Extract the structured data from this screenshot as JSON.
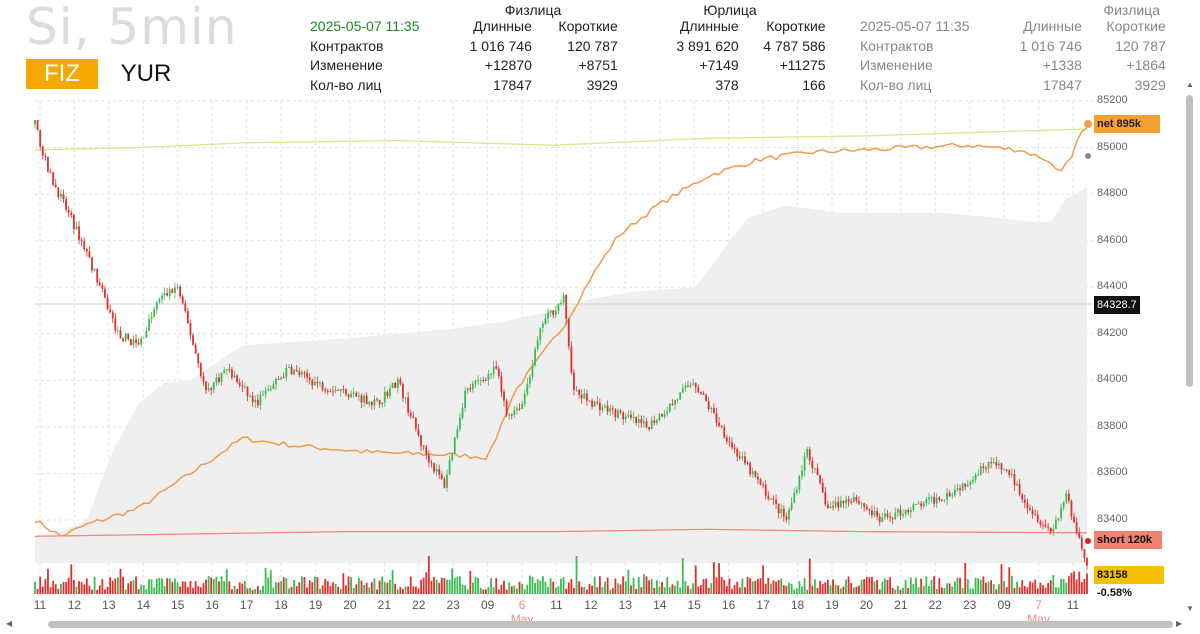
{
  "header": {
    "title": "Si, 5min",
    "tab_fiz": "FIZ",
    "tab_yur": "YUR"
  },
  "stats_left": {
    "timestamp": "2025-05-07 11:35",
    "group_fiz": "Физлица",
    "group_yur": "Юрлица",
    "col_long": "Длинные",
    "col_short": "Короткие",
    "col_long2": "Длинные",
    "col_short2": "Короткие",
    "rows": [
      {
        "label": "Контрактов",
        "fiz_long": "1 016 746",
        "fiz_short": "120 787",
        "yur_long": "3 891 620",
        "yur_short": "4 787 586"
      },
      {
        "label": "Изменение",
        "fiz_long": "+12870",
        "fiz_short": "+8751",
        "yur_long": "+7149",
        "yur_short": "+11275"
      },
      {
        "label": "Кол-во лиц",
        "fiz_long": "17847",
        "fiz_short": "3929",
        "yur_long": "378",
        "yur_short": "166"
      }
    ]
  },
  "stats_right": {
    "timestamp": "2025-05-07 11:35",
    "group": "Физлица",
    "col_long": "Длинные",
    "col_short": "Короткие",
    "rows": [
      {
        "label": "Контрактов",
        "long": "1 016 746",
        "short": "120 787"
      },
      {
        "label": "Изменение",
        "long": "+1338",
        "short": "+1864"
      },
      {
        "label": "Кол-во лиц",
        "long": "17847",
        "short": "3929"
      }
    ]
  },
  "price_labels": {
    "net": "net 895k",
    "crosshair": "84328.7",
    "short": "short 120k",
    "last": "83158 -0.58%"
  },
  "colors": {
    "up": "#3cba54",
    "down": "#e0302e",
    "orange_line": "#f29a4a",
    "yellow_line": "#d8e88c",
    "red_line": "#f08a80",
    "band": "#efefef",
    "timestamp_green": "#1a8a1a"
  },
  "chart_data": {
    "type": "candlestick",
    "y_axis": {
      "min": 83200,
      "max": 85200,
      "ticks": [
        85200,
        85000,
        84800,
        84600,
        84400,
        84200,
        84000,
        83800,
        83600,
        83400
      ]
    },
    "x_ticks": [
      "11",
      "12",
      "13",
      "14",
      "15",
      "16",
      "17",
      "18",
      "19",
      "20",
      "21",
      "22",
      "23",
      "09",
      "6 May",
      "11",
      "12",
      "13",
      "14",
      "15",
      "16",
      "17",
      "18",
      "19",
      "20",
      "21",
      "22",
      "23",
      "09",
      "7 May",
      "11"
    ],
    "x_ticks_highlighted": [
      "6 May",
      "7 May"
    ],
    "price_anchors": [
      [
        0,
        85100
      ],
      [
        5,
        84900
      ],
      [
        20,
        84550
      ],
      [
        32,
        84200
      ],
      [
        40,
        84150
      ],
      [
        48,
        84350
      ],
      [
        55,
        84400
      ],
      [
        60,
        84200
      ],
      [
        66,
        83950
      ],
      [
        74,
        84050
      ],
      [
        85,
        83900
      ],
      [
        98,
        84050
      ],
      [
        110,
        83980
      ],
      [
        120,
        83950
      ],
      [
        132,
        83900
      ],
      [
        140,
        84000
      ],
      [
        150,
        83700
      ],
      [
        158,
        83550
      ],
      [
        166,
        83950
      ],
      [
        178,
        84050
      ],
      [
        182,
        83850
      ],
      [
        188,
        83900
      ],
      [
        196,
        84250
      ],
      [
        204,
        84350
      ],
      [
        208,
        83950
      ],
      [
        216,
        83900
      ],
      [
        226,
        83850
      ],
      [
        236,
        83800
      ],
      [
        246,
        83900
      ],
      [
        254,
        84000
      ],
      [
        262,
        83850
      ],
      [
        270,
        83700
      ],
      [
        280,
        83550
      ],
      [
        290,
        83400
      ],
      [
        298,
        83700
      ],
      [
        306,
        83450
      ],
      [
        316,
        83500
      ],
      [
        326,
        83400
      ],
      [
        338,
        83450
      ],
      [
        350,
        83500
      ],
      [
        358,
        83550
      ],
      [
        368,
        83650
      ],
      [
        376,
        83600
      ],
      [
        384,
        83450
      ],
      [
        392,
        83350
      ],
      [
        398,
        83500
      ],
      [
        402,
        83350
      ],
      [
        406,
        83200
      ]
    ],
    "yellow_line": [
      [
        0,
        84990
      ],
      [
        40,
        85000
      ],
      [
        80,
        85020
      ],
      [
        140,
        85030
      ],
      [
        200,
        85010
      ],
      [
        260,
        85040
      ],
      [
        320,
        85050
      ],
      [
        406,
        85080
      ]
    ],
    "orange_line": [
      [
        0,
        83400
      ],
      [
        10,
        83330
      ],
      [
        20,
        83380
      ],
      [
        40,
        83450
      ],
      [
        60,
        83600
      ],
      [
        80,
        83750
      ],
      [
        100,
        83720
      ],
      [
        130,
        83690
      ],
      [
        160,
        83680
      ],
      [
        175,
        83670
      ],
      [
        185,
        83950
      ],
      [
        195,
        84100
      ],
      [
        205,
        84250
      ],
      [
        215,
        84450
      ],
      [
        225,
        84620
      ],
      [
        240,
        84750
      ],
      [
        260,
        84880
      ],
      [
        280,
        84950
      ],
      [
        300,
        84980
      ],
      [
        320,
        84990
      ],
      [
        340,
        85000
      ],
      [
        360,
        85010
      ],
      [
        380,
        84990
      ],
      [
        390,
        84950
      ],
      [
        395,
        84900
      ],
      [
        400,
        84950
      ],
      [
        403,
        85050
      ],
      [
        406,
        85080
      ]
    ],
    "red_line": [
      [
        0,
        83330
      ],
      [
        60,
        83340
      ],
      [
        120,
        83350
      ],
      [
        200,
        83350
      ],
      [
        260,
        83360
      ],
      [
        320,
        83350
      ],
      [
        406,
        83345
      ]
    ],
    "band_upper": [
      [
        0,
        83330
      ],
      [
        10,
        83350
      ],
      [
        20,
        83400
      ],
      [
        30,
        83700
      ],
      [
        40,
        83900
      ],
      [
        50,
        83990
      ],
      [
        60,
        84000
      ],
      [
        80,
        84150
      ],
      [
        120,
        84180
      ],
      [
        160,
        84220
      ],
      [
        180,
        84250
      ],
      [
        200,
        84300
      ],
      [
        215,
        84350
      ],
      [
        230,
        84380
      ],
      [
        255,
        84400
      ],
      [
        275,
        84700
      ],
      [
        290,
        84750
      ],
      [
        310,
        84720
      ],
      [
        330,
        84720
      ],
      [
        350,
        84720
      ],
      [
        370,
        84700
      ],
      [
        385,
        84680
      ],
      [
        392,
        84680
      ],
      [
        398,
        84780
      ],
      [
        406,
        84830
      ]
    ],
    "band_lower_value": 83300
  }
}
